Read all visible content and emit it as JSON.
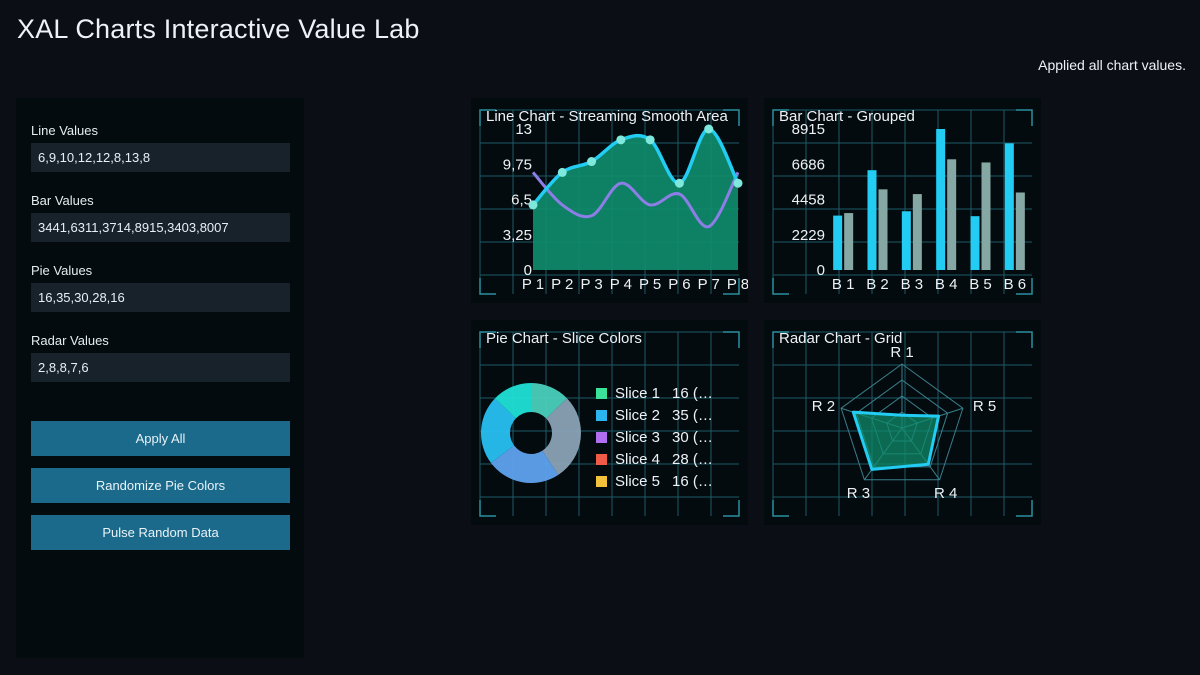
{
  "app": {
    "title": "XAL Charts Interactive Value Lab",
    "status": "Applied all chart values."
  },
  "controls": {
    "line": {
      "label": "Line Values",
      "value": "6,9,10,12,12,8,13,8"
    },
    "bar": {
      "label": "Bar Values",
      "value": "3441,6311,3714,8915,3403,8007"
    },
    "pie": {
      "label": "Pie Values",
      "value": "16,35,30,28,16"
    },
    "radar": {
      "label": "Radar Values",
      "value": "2,8,8,7,6"
    },
    "buttons": {
      "apply": "Apply All",
      "randomize": "Randomize Pie Colors",
      "pulse": "Pulse Random Data"
    }
  },
  "colors": {
    "accent": "#22ccf2",
    "area_fill": "#0f8b6a",
    "secondary_line": "#8c7ee6",
    "bar_secondary": "#86a8a4",
    "grid": "#1d5a66"
  },
  "chart_data": [
    {
      "type": "line",
      "title": "Line Chart - Streaming Smooth Area",
      "categories": [
        "P 1",
        "P 2",
        "P 3",
        "P 4",
        "P 5",
        "P 6",
        "P 7",
        "P 8"
      ],
      "y_ticks": [
        "0",
        "3,25",
        "6,5",
        "9,75",
        "13"
      ],
      "ylim": [
        0,
        13
      ],
      "series": [
        {
          "values": [
            6,
            9,
            10,
            12,
            12,
            8,
            13,
            8
          ],
          "color": "#22ccf2",
          "style": "smooth-area"
        },
        {
          "values": [
            9,
            6,
            5,
            8,
            6,
            7,
            4,
            9
          ],
          "color": "#8c7ee6",
          "style": "smooth-line"
        }
      ]
    },
    {
      "type": "bar",
      "title": "Bar Chart - Grouped",
      "categories": [
        "B 1",
        "B 2",
        "B 3",
        "B 4",
        "B 5",
        "B 6"
      ],
      "y_ticks": [
        "0",
        "2229",
        "4458",
        "6686",
        "8915"
      ],
      "ylim": [
        0,
        8915
      ],
      "series": [
        {
          "values": [
            3441,
            6311,
            3714,
            8915,
            3403,
            8007
          ],
          "color": "#22ccf2"
        },
        {
          "values": [
            3600,
            5100,
            4800,
            7000,
            6800,
            4900
          ],
          "color": "#86a8a4"
        }
      ]
    },
    {
      "type": "pie",
      "title": "Pie Chart - Slice Colors",
      "style": "donut",
      "legend": "right",
      "slices": [
        {
          "label": "Slice 1",
          "value": 16,
          "legend_text": "16 (…",
          "color": "#3be39a",
          "fill": "#49cfbc"
        },
        {
          "label": "Slice 2",
          "value": 35,
          "legend_text": "35 (…",
          "color": "#2bb6f0",
          "fill": "#8aa2b6"
        },
        {
          "label": "Slice 3",
          "value": 30,
          "legend_text": "30 (…",
          "color": "#b06ef0",
          "fill": "#5fa2ee"
        },
        {
          "label": "Slice 4",
          "value": 28,
          "legend_text": "28 (…",
          "color": "#f05b48",
          "fill": "#28c0f2"
        },
        {
          "label": "Slice 5",
          "value": 16,
          "legend_text": "16 (…",
          "color": "#f2c33a",
          "fill": "#1fe0d6"
        }
      ]
    },
    {
      "type": "radar",
      "title": "Radar Chart - Grid",
      "axes": [
        "R 1",
        "R 5",
        "R 4",
        "R 3",
        "R 2"
      ],
      "values": [
        2,
        6,
        7,
        8,
        8
      ],
      "max": 10,
      "color": "#22ccf2"
    }
  ]
}
